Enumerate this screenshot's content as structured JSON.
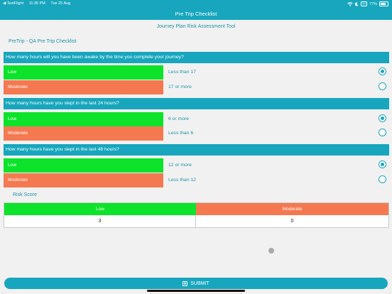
{
  "status_bar": {
    "carrier": "◀ TestFlight",
    "time": "11:35 PM",
    "date": "Tue 25 Aug",
    "battery_mode": "77",
    "battery_percent": "77%"
  },
  "nav": {
    "title": "Pre Trip Checklist"
  },
  "subtitle": "Journey Plan Risk Assessment Tool",
  "checklist_title": "PreTrip - QA Pre Trip Checklist",
  "questions": [
    {
      "text": "How many hours will you have been awake by the time you complete your journey?",
      "options": [
        {
          "risk": "Low",
          "answer": "Less than 17",
          "selected": true
        },
        {
          "risk": "Moderate",
          "answer": "17 or more",
          "selected": false
        }
      ]
    },
    {
      "text": "How many hours have you slept in the last 24 hours?",
      "options": [
        {
          "risk": "Low",
          "answer": "6 or more",
          "selected": true
        },
        {
          "risk": "Moderate",
          "answer": "Less than 6",
          "selected": false
        }
      ]
    },
    {
      "text": "How many hours have you slept in the last 48 hours?",
      "options": [
        {
          "risk": "Low",
          "answer": "12 or more",
          "selected": true
        },
        {
          "risk": "Moderate",
          "answer": "Less than 12",
          "selected": false
        }
      ]
    }
  ],
  "risk_score": {
    "label": "Risk Score",
    "columns": [
      "Low",
      "Moderate"
    ],
    "values": [
      "3",
      "0"
    ]
  },
  "submit_label": "SUBMIT",
  "colors": {
    "accent": "#17a6bd",
    "low": "#0ce32a",
    "moderate": "#f47950"
  }
}
